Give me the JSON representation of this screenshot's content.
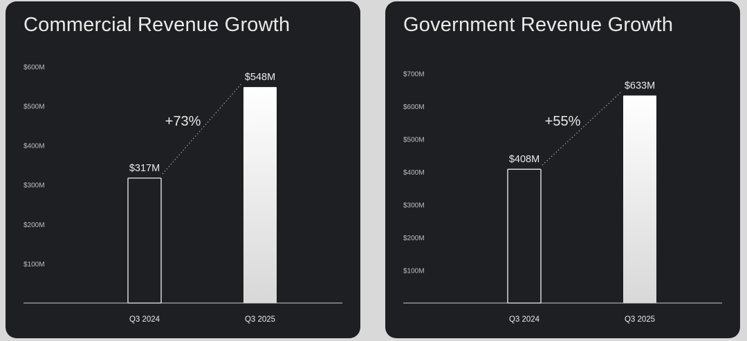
{
  "chart_data": [
    {
      "type": "bar",
      "title": "Commercial Revenue Growth",
      "categories": [
        "Q3 2024",
        "Q3 2025"
      ],
      "values": [
        317,
        548
      ],
      "value_labels": [
        "$317M",
        "$548M"
      ],
      "y_ticks": [
        "$100M",
        "$200M",
        "$300M",
        "$400M",
        "$500M",
        "$600M"
      ],
      "ylim": [
        0,
        600
      ],
      "growth_label": "+73%",
      "grid": false,
      "legend": "none"
    },
    {
      "type": "bar",
      "title": "Government Revenue Growth",
      "categories": [
        "Q3 2024",
        "Q3 2025"
      ],
      "values": [
        408,
        633
      ],
      "value_labels": [
        "$408M",
        "$633M"
      ],
      "y_ticks": [
        "$100M",
        "$200M",
        "$300M",
        "$400M",
        "$500M",
        "$600M",
        "$700M"
      ],
      "ylim": [
        0,
        700
      ],
      "growth_label": "+55%",
      "grid": false,
      "legend": "none"
    }
  ],
  "colors": {
    "page_background": "#d9d9d9",
    "panel_background": "#1e1f22",
    "text": "#eaeaea",
    "muted_text": "#bfbfbf",
    "outline": "#f2f2f2"
  }
}
